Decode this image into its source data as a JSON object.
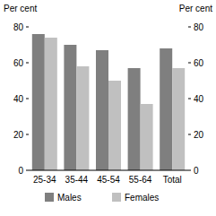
{
  "chart_data": {
    "type": "bar",
    "y_label": "Per cent",
    "y2_label": "Per cent",
    "categories": [
      "25-34",
      "35-44",
      "45-54",
      "55-64",
      "Total"
    ],
    "series": [
      {
        "name": "Males",
        "color": "#7f7f7f",
        "values": [
          76,
          70,
          67,
          57,
          68
        ]
      },
      {
        "name": "Females",
        "color": "#c0c0c0",
        "values": [
          74,
          58,
          50,
          37,
          57
        ]
      }
    ],
    "ylim": [
      0,
      80
    ],
    "yticks": [
      0,
      20,
      40,
      60,
      80
    ],
    "y2lim": [
      0,
      80
    ],
    "y2ticks": [
      0,
      20,
      40,
      60,
      80
    ],
    "grid": false,
    "legend": "bottom"
  }
}
